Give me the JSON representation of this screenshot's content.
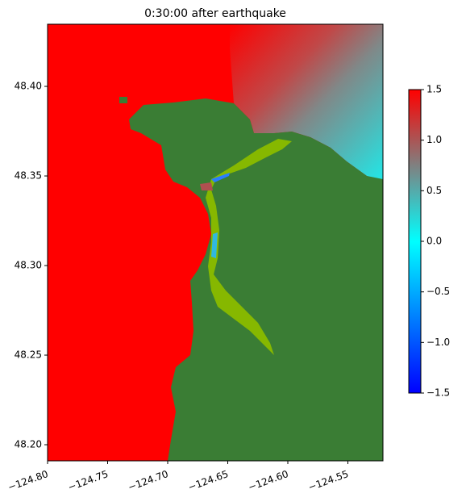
{
  "chart_data": {
    "type": "heatmap",
    "title": "0:30:00 after earthquake",
    "xlim": [
      -124.8,
      -124.5208
    ],
    "ylim": [
      48.191,
      48.4347
    ],
    "xticks": [
      {
        "value": -124.8,
        "label": "−124.80"
      },
      {
        "value": -124.75,
        "label": "−124.75"
      },
      {
        "value": -124.7,
        "label": "−124.70"
      },
      {
        "value": -124.65,
        "label": "−124.65"
      },
      {
        "value": -124.6,
        "label": "−124.60"
      },
      {
        "value": -124.55,
        "label": "−124.55"
      }
    ],
    "yticks": [
      {
        "value": 48.2,
        "label": "48.20"
      },
      48.25,
      {
        "value": 48.3,
        "label": "48.30"
      },
      48.35,
      {
        "value": 48.4,
        "label": "48.40"
      }
    ],
    "clim": [
      -1.5,
      1.5
    ],
    "cticks": [
      {
        "value": -1.5,
        "label": "−1.5"
      },
      {
        "value": -1.0,
        "label": "−1.0"
      },
      {
        "value": -0.5,
        "label": "−0.5"
      },
      {
        "value": 0.0,
        "label": "0.0"
      },
      {
        "value": 0.5,
        "label": "0.5"
      },
      {
        "value": 1.0,
        "label": "1.0"
      },
      {
        "value": 1.5,
        "label": "1.5"
      }
    ],
    "colormap": [
      "#0000ff",
      "#0080ff",
      "#00ffff",
      "#808080",
      "#ff0000"
    ]
  }
}
